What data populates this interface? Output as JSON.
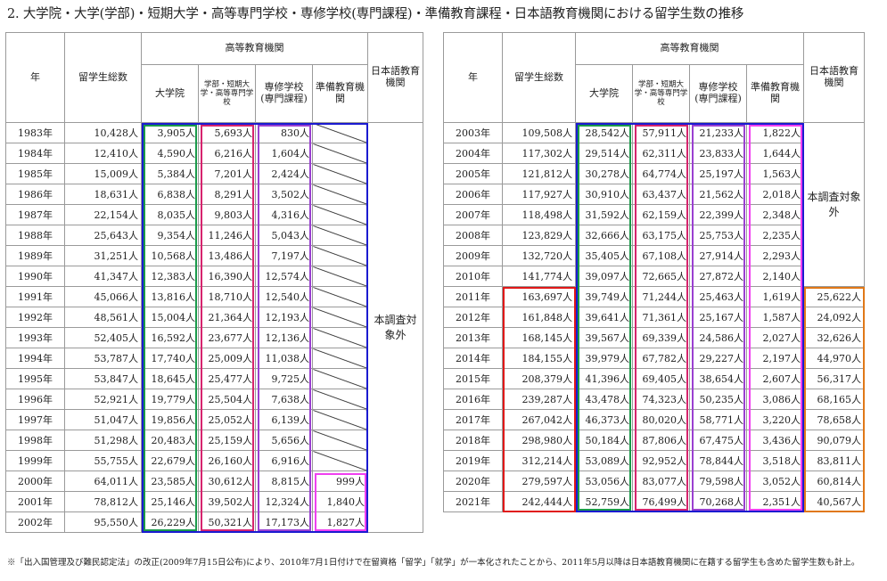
{
  "title": "2. 大学院・大学(学部)・短期大学・高等専門学校・専修学校(専門課程)・準備教育課程・日本語教育機関における留学生数の推移",
  "headers": {
    "year": "年",
    "total": "留学生総数",
    "higher_ed": "高等教育機関",
    "grad": "大学院",
    "undergrad": "学部・短期大学・高等専門学校",
    "vocational": "専修学校(専門課程)",
    "prep": "準備教育機関",
    "japanese": "日本語教育機関"
  },
  "note_not_surveyed": "本調査対象外",
  "left_rows": [
    {
      "year": "1983年",
      "total": "10,428人",
      "grad": "3,905人",
      "undergrad": "5,693人",
      "vocational": "830人",
      "prep": ""
    },
    {
      "year": "1984年",
      "total": "12,410人",
      "grad": "4,590人",
      "undergrad": "6,216人",
      "vocational": "1,604人",
      "prep": ""
    },
    {
      "year": "1985年",
      "total": "15,009人",
      "grad": "5,384人",
      "undergrad": "7,201人",
      "vocational": "2,424人",
      "prep": ""
    },
    {
      "year": "1986年",
      "total": "18,631人",
      "grad": "6,838人",
      "undergrad": "8,291人",
      "vocational": "3,502人",
      "prep": ""
    },
    {
      "year": "1987年",
      "total": "22,154人",
      "grad": "8,035人",
      "undergrad": "9,803人",
      "vocational": "4,316人",
      "prep": ""
    },
    {
      "year": "1988年",
      "total": "25,643人",
      "grad": "9,354人",
      "undergrad": "11,246人",
      "vocational": "5,043人",
      "prep": ""
    },
    {
      "year": "1989年",
      "total": "31,251人",
      "grad": "10,568人",
      "undergrad": "13,486人",
      "vocational": "7,197人",
      "prep": ""
    },
    {
      "year": "1990年",
      "total": "41,347人",
      "grad": "12,383人",
      "undergrad": "16,390人",
      "vocational": "12,574人",
      "prep": ""
    },
    {
      "year": "1991年",
      "total": "45,066人",
      "grad": "13,816人",
      "undergrad": "18,710人",
      "vocational": "12,540人",
      "prep": ""
    },
    {
      "year": "1992年",
      "total": "48,561人",
      "grad": "15,004人",
      "undergrad": "21,364人",
      "vocational": "12,193人",
      "prep": ""
    },
    {
      "year": "1993年",
      "total": "52,405人",
      "grad": "16,592人",
      "undergrad": "23,677人",
      "vocational": "12,136人",
      "prep": ""
    },
    {
      "year": "1994年",
      "total": "53,787人",
      "grad": "17,740人",
      "undergrad": "25,009人",
      "vocational": "11,038人",
      "prep": ""
    },
    {
      "year": "1995年",
      "total": "53,847人",
      "grad": "18,645人",
      "undergrad": "25,477人",
      "vocational": "9,725人",
      "prep": ""
    },
    {
      "year": "1996年",
      "total": "52,921人",
      "grad": "19,779人",
      "undergrad": "25,504人",
      "vocational": "7,638人",
      "prep": ""
    },
    {
      "year": "1997年",
      "total": "51,047人",
      "grad": "19,856人",
      "undergrad": "25,052人",
      "vocational": "6,139人",
      "prep": ""
    },
    {
      "year": "1998年",
      "total": "51,298人",
      "grad": "20,483人",
      "undergrad": "25,159人",
      "vocational": "5,656人",
      "prep": ""
    },
    {
      "year": "1999年",
      "total": "55,755人",
      "grad": "22,679人",
      "undergrad": "26,160人",
      "vocational": "6,916人",
      "prep": ""
    },
    {
      "year": "2000年",
      "total": "64,011人",
      "grad": "23,585人",
      "undergrad": "30,612人",
      "vocational": "8,815人",
      "prep": "999人"
    },
    {
      "year": "2001年",
      "total": "78,812人",
      "grad": "25,146人",
      "undergrad": "39,502人",
      "vocational": "12,324人",
      "prep": "1,840人"
    },
    {
      "year": "2002年",
      "total": "95,550人",
      "grad": "26,229人",
      "undergrad": "50,321人",
      "vocational": "17,173人",
      "prep": "1,827人"
    }
  ],
  "right_rows": [
    {
      "year": "2003年",
      "total": "109,508人",
      "grad": "28,542人",
      "undergrad": "57,911人",
      "vocational": "21,233人",
      "prep": "1,822人",
      "japanese": ""
    },
    {
      "year": "2004年",
      "total": "117,302人",
      "grad": "29,514人",
      "undergrad": "62,311人",
      "vocational": "23,833人",
      "prep": "1,644人",
      "japanese": ""
    },
    {
      "year": "2005年",
      "total": "121,812人",
      "grad": "30,278人",
      "undergrad": "64,774人",
      "vocational": "25,197人",
      "prep": "1,563人",
      "japanese": ""
    },
    {
      "year": "2006年",
      "total": "117,927人",
      "grad": "30,910人",
      "undergrad": "63,437人",
      "vocational": "21,562人",
      "prep": "2,018人",
      "japanese": ""
    },
    {
      "year": "2007年",
      "total": "118,498人",
      "grad": "31,592人",
      "undergrad": "62,159人",
      "vocational": "22,399人",
      "prep": "2,348人",
      "japanese": ""
    },
    {
      "year": "2008年",
      "total": "123,829人",
      "grad": "32,666人",
      "undergrad": "63,175人",
      "vocational": "25,753人",
      "prep": "2,235人",
      "japanese": ""
    },
    {
      "year": "2009年",
      "total": "132,720人",
      "grad": "35,405人",
      "undergrad": "67,108人",
      "vocational": "27,914人",
      "prep": "2,293人",
      "japanese": ""
    },
    {
      "year": "2010年",
      "total": "141,774人",
      "grad": "39,097人",
      "undergrad": "72,665人",
      "vocational": "27,872人",
      "prep": "2,140人",
      "japanese": ""
    },
    {
      "year": "2011年",
      "total": "163,697人",
      "grad": "39,749人",
      "undergrad": "71,244人",
      "vocational": "25,463人",
      "prep": "1,619人",
      "japanese": "25,622人"
    },
    {
      "year": "2012年",
      "total": "161,848人",
      "grad": "39,641人",
      "undergrad": "71,361人",
      "vocational": "25,167人",
      "prep": "1,587人",
      "japanese": "24,092人"
    },
    {
      "year": "2013年",
      "total": "168,145人",
      "grad": "39,567人",
      "undergrad": "69,339人",
      "vocational": "24,586人",
      "prep": "2,027人",
      "japanese": "32,626人"
    },
    {
      "year": "2014年",
      "total": "184,155人",
      "grad": "39,979人",
      "undergrad": "67,782人",
      "vocational": "29,227人",
      "prep": "2,197人",
      "japanese": "44,970人"
    },
    {
      "year": "2015年",
      "total": "208,379人",
      "grad": "41,396人",
      "undergrad": "69,405人",
      "vocational": "38,654人",
      "prep": "2,607人",
      "japanese": "56,317人"
    },
    {
      "year": "2016年",
      "total": "239,287人",
      "grad": "43,478人",
      "undergrad": "74,323人",
      "vocational": "50,235人",
      "prep": "3,086人",
      "japanese": "68,165人"
    },
    {
      "year": "2017年",
      "total": "267,042人",
      "grad": "46,373人",
      "undergrad": "80,020人",
      "vocational": "58,771人",
      "prep": "3,220人",
      "japanese": "78,658人"
    },
    {
      "year": "2018年",
      "total": "298,980人",
      "grad": "50,184人",
      "undergrad": "87,806人",
      "vocational": "67,475人",
      "prep": "3,436人",
      "japanese": "90,079人"
    },
    {
      "year": "2019年",
      "total": "312,214人",
      "grad": "53,089人",
      "undergrad": "92,952人",
      "vocational": "78,844人",
      "prep": "3,518人",
      "japanese": "83,811人"
    },
    {
      "year": "2020年",
      "total": "279,597人",
      "grad": "53,056人",
      "undergrad": "83,077人",
      "vocational": "79,598人",
      "prep": "3,052人",
      "japanese": "60,814人"
    },
    {
      "year": "2021年",
      "total": "242,444人",
      "grad": "52,759人",
      "undergrad": "76,499人",
      "vocational": "70,268人",
      "prep": "2,351人",
      "japanese": "40,567人"
    }
  ],
  "footnote": "※「出入国管理及び難民認定法」の改正(2009年7月15日公布)により、2010年7月1日付けで在留資格「留学」「就学」が一本化されたことから、2011年5月以降は日本語教育機関に在籍する留学生も含めた留学生数も計上。",
  "highlight_colors": {
    "grad": "#1a9a4a",
    "undergrad": "#d6246e",
    "vocational": "#9a40d0",
    "prep": "#f040f0",
    "higher_ed": "#1a1ad0",
    "total_recent": "#e01818",
    "japanese_recent": "#e07818"
  }
}
